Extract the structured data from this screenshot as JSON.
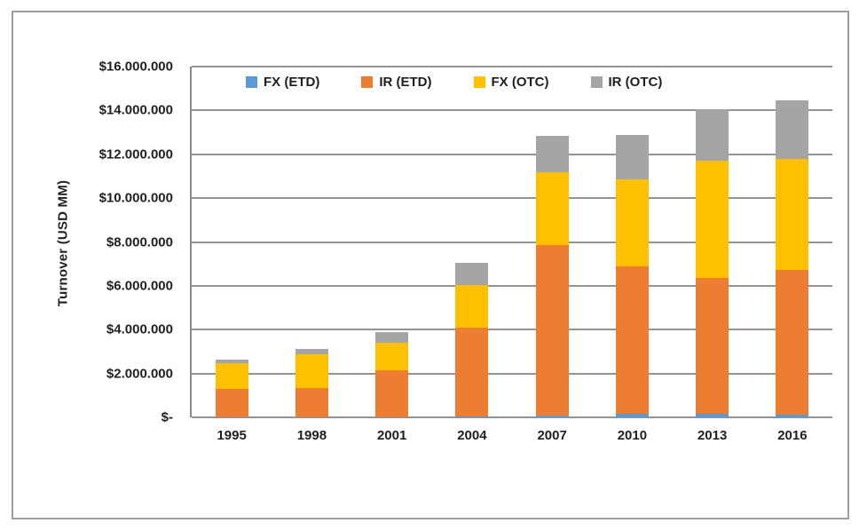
{
  "figure": {
    "background": "#ffffff",
    "border_color": "#9e9e9e"
  },
  "chart_data": {
    "type": "bar",
    "stacked": true,
    "title": "",
    "xlabel": "",
    "ylabel": "Turnover (USD MM)",
    "categories": [
      "1995",
      "1998",
      "2001",
      "2004",
      "2007",
      "2010",
      "2013",
      "2016"
    ],
    "series": [
      {
        "name": "FX (ETD)",
        "color": "#5B9BD5",
        "values": [
          17000,
          11000,
          10000,
          23000,
          80000,
          166000,
          160000,
          115000
        ]
      },
      {
        "name": "IR (ETD)",
        "color": "#ED7D31",
        "values": [
          1283000,
          1324000,
          2135000,
          4077000,
          7770000,
          6704000,
          6200000,
          6605000
        ]
      },
      {
        "name": "FX (OTC)",
        "color": "#FFC000",
        "values": [
          1190000,
          1527000,
          1239000,
          1934000,
          3324000,
          3973000,
          5357000,
          5066000
        ]
      },
      {
        "name": "IR (OTC)",
        "color": "#A5A5A5",
        "values": [
          151000,
          265000,
          489000,
          1025000,
          1686000,
          2054000,
          2343000,
          2669000
        ]
      }
    ],
    "ylim": [
      0,
      16000000
    ],
    "ytick_step": 2000000,
    "ytick_labels": [
      "$-",
      "$2.000.000",
      "$4.000.000",
      "$6.000.000",
      "$8.000.000",
      "$10.000.000",
      "$12.000.000",
      "$14.000.000",
      "$16.000.000"
    ],
    "grid": "horizontal",
    "gridline_color": "#949494",
    "axis_color": "#8c8c8c",
    "legend_position": "top-inside"
  }
}
